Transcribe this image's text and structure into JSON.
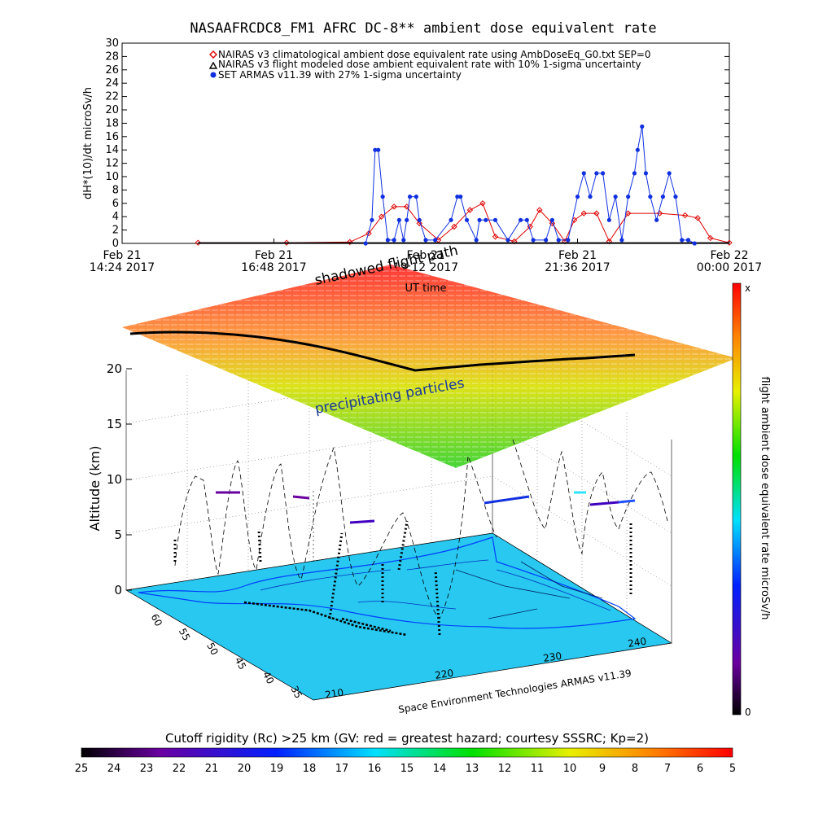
{
  "top_chart": {
    "title": "NASAAFRCDC8_FM1 AFRC DC-8** ambient dose equivalent rate",
    "ylabel": "dH*(10)/dt microSv/h",
    "legend": [
      {
        "label": "NAIRAS v3 climatological ambient dose equivalent rate using AmbDoseEq_G0.txt SEP=0",
        "color": "#e00000",
        "marker": "diamond"
      },
      {
        "label": "NAIRAS v3 flight modeled dose ambient equivalent rate with 10% 1-sigma uncertainty",
        "color": "#000000",
        "marker": "triangle"
      },
      {
        "label": "SET ARMAS v11.39 with 27% 1-sigma uncertainty",
        "color": "#1030e0",
        "marker": "circle"
      }
    ],
    "x_ticks": [
      {
        "line1": "Feb 21",
        "line2": "14:24 2017"
      },
      {
        "line1": "Feb 21",
        "line2": "16:48 2017"
      },
      {
        "line1": "Feb 21",
        "line2": "19:12 2017"
      },
      {
        "line1": "Feb 21",
        "line2": "21:36 2017"
      },
      {
        "line1": "Feb 22",
        "line2": "00:00 2017"
      }
    ],
    "xlabel": "UT time"
  },
  "chart_data": [
    {
      "type": "line",
      "title": "NASAAFRCDC8_FM1 AFRC DC-8** ambient dose equivalent rate",
      "xlabel": "UT time",
      "ylabel": "dH*(10)/dt microSv/h",
      "x_unit": "hours since Feb 21 14:24 2017",
      "xlim": [
        0,
        9.6
      ],
      "ylim": [
        0,
        30
      ],
      "yticks": [
        0,
        2,
        4,
        6,
        8,
        10,
        12,
        14,
        16,
        18,
        20,
        22,
        24,
        26,
        28,
        30
      ],
      "series": [
        {
          "name": "NAIRAS v3 climatological ambient dose equivalent rate using AmbDoseEq_G0.txt SEP=0",
          "color": "#e00000",
          "x": [
            1.2,
            2.6,
            3.6,
            3.9,
            4.1,
            4.3,
            4.5,
            4.7,
            5.0,
            5.25,
            5.5,
            5.7,
            5.9,
            6.2,
            6.45,
            6.6,
            6.8,
            7.0,
            7.15,
            7.3,
            7.5,
            7.7,
            8.0,
            8.5,
            8.9,
            9.1,
            9.3,
            9.6
          ],
          "y": [
            0.1,
            0.1,
            0.2,
            1.5,
            4.0,
            5.5,
            5.5,
            3.0,
            0.5,
            2.5,
            5.0,
            6.0,
            1.0,
            0.3,
            2.5,
            5.0,
            3.0,
            0.3,
            3.5,
            4.5,
            4.5,
            0.3,
            4.5,
            4.5,
            4.2,
            3.8,
            0.8,
            0.1
          ]
        },
        {
          "name": "NAIRAS v3 flight modeled dose ambient equivalent rate with 10% 1-sigma uncertainty",
          "color": "#000000",
          "x": [
            1.2,
            9.6
          ],
          "y": [
            0.05,
            0.05
          ]
        },
        {
          "name": "SET ARMAS v11.39 with 27% 1-sigma uncertainty",
          "color": "#1030e0",
          "x": [
            3.85,
            3.95,
            4.0,
            4.05,
            4.12,
            4.2,
            4.3,
            4.38,
            4.45,
            4.5,
            4.55,
            4.65,
            4.7,
            4.8,
            4.95,
            5.2,
            5.3,
            5.35,
            5.45,
            5.6,
            5.65,
            5.75,
            5.9,
            6.1,
            6.3,
            6.4,
            6.5,
            6.7,
            6.8,
            6.9,
            7.05,
            7.2,
            7.3,
            7.4,
            7.5,
            7.6,
            7.7,
            7.8,
            7.9,
            8.0,
            8.1,
            8.15,
            8.22,
            8.28,
            8.35,
            8.45,
            8.55,
            8.65,
            8.75,
            8.85,
            8.95,
            9.05
          ],
          "y": [
            0.0,
            3.5,
            14.0,
            14.0,
            7.0,
            0.5,
            0.5,
            3.5,
            0.5,
            3.5,
            7.0,
            7.0,
            3.5,
            0.5,
            0.5,
            3.5,
            7.0,
            7.0,
            3.5,
            0.5,
            3.5,
            3.5,
            3.5,
            0.5,
            3.5,
            3.5,
            0.5,
            0.5,
            3.5,
            0.5,
            0.5,
            7.0,
            10.5,
            7.0,
            10.5,
            10.5,
            3.5,
            7.0,
            0.5,
            7.0,
            10.5,
            14.0,
            17.5,
            10.5,
            7.0,
            3.5,
            7.0,
            10.5,
            7.0,
            0.5,
            0.5,
            0.0
          ]
        }
      ]
    },
    {
      "type": "3d-trajectory",
      "zlabel": "Altitude (km)",
      "zticks": [
        0,
        5,
        10,
        15,
        20
      ],
      "y_ticks_lat": [
        "60",
        "55",
        "50",
        "45",
        "40",
        "35"
      ],
      "x_ticks_lon": [
        "210",
        "220",
        "230",
        "240"
      ],
      "annotations": [
        "shadowed flight path",
        "precipitating particles",
        "Space Environment Technologies ARMAS v11.39"
      ],
      "colorbar_right": {
        "label": "flight ambient dose equivalent rate microSv/h",
        "top": "x",
        "bottom": "0"
      },
      "colorbar_bottom": {
        "label": "Cutoff rigidity (Rc) >25 km (GV: red = greatest hazard; courtesy SSSRC; Kp=2)",
        "ticks": [
          "25",
          "24",
          "23",
          "22",
          "21",
          "20",
          "19",
          "18",
          "17",
          "16",
          "15",
          "14",
          "13",
          "12",
          "11",
          "10",
          "9",
          "8",
          "7",
          "6",
          "5"
        ]
      }
    }
  ],
  "colors": {
    "nairas_clim": "#e00000",
    "nairas_flight": "#000000",
    "armas": "#1030e0",
    "map_fill": "#28c8f0"
  }
}
